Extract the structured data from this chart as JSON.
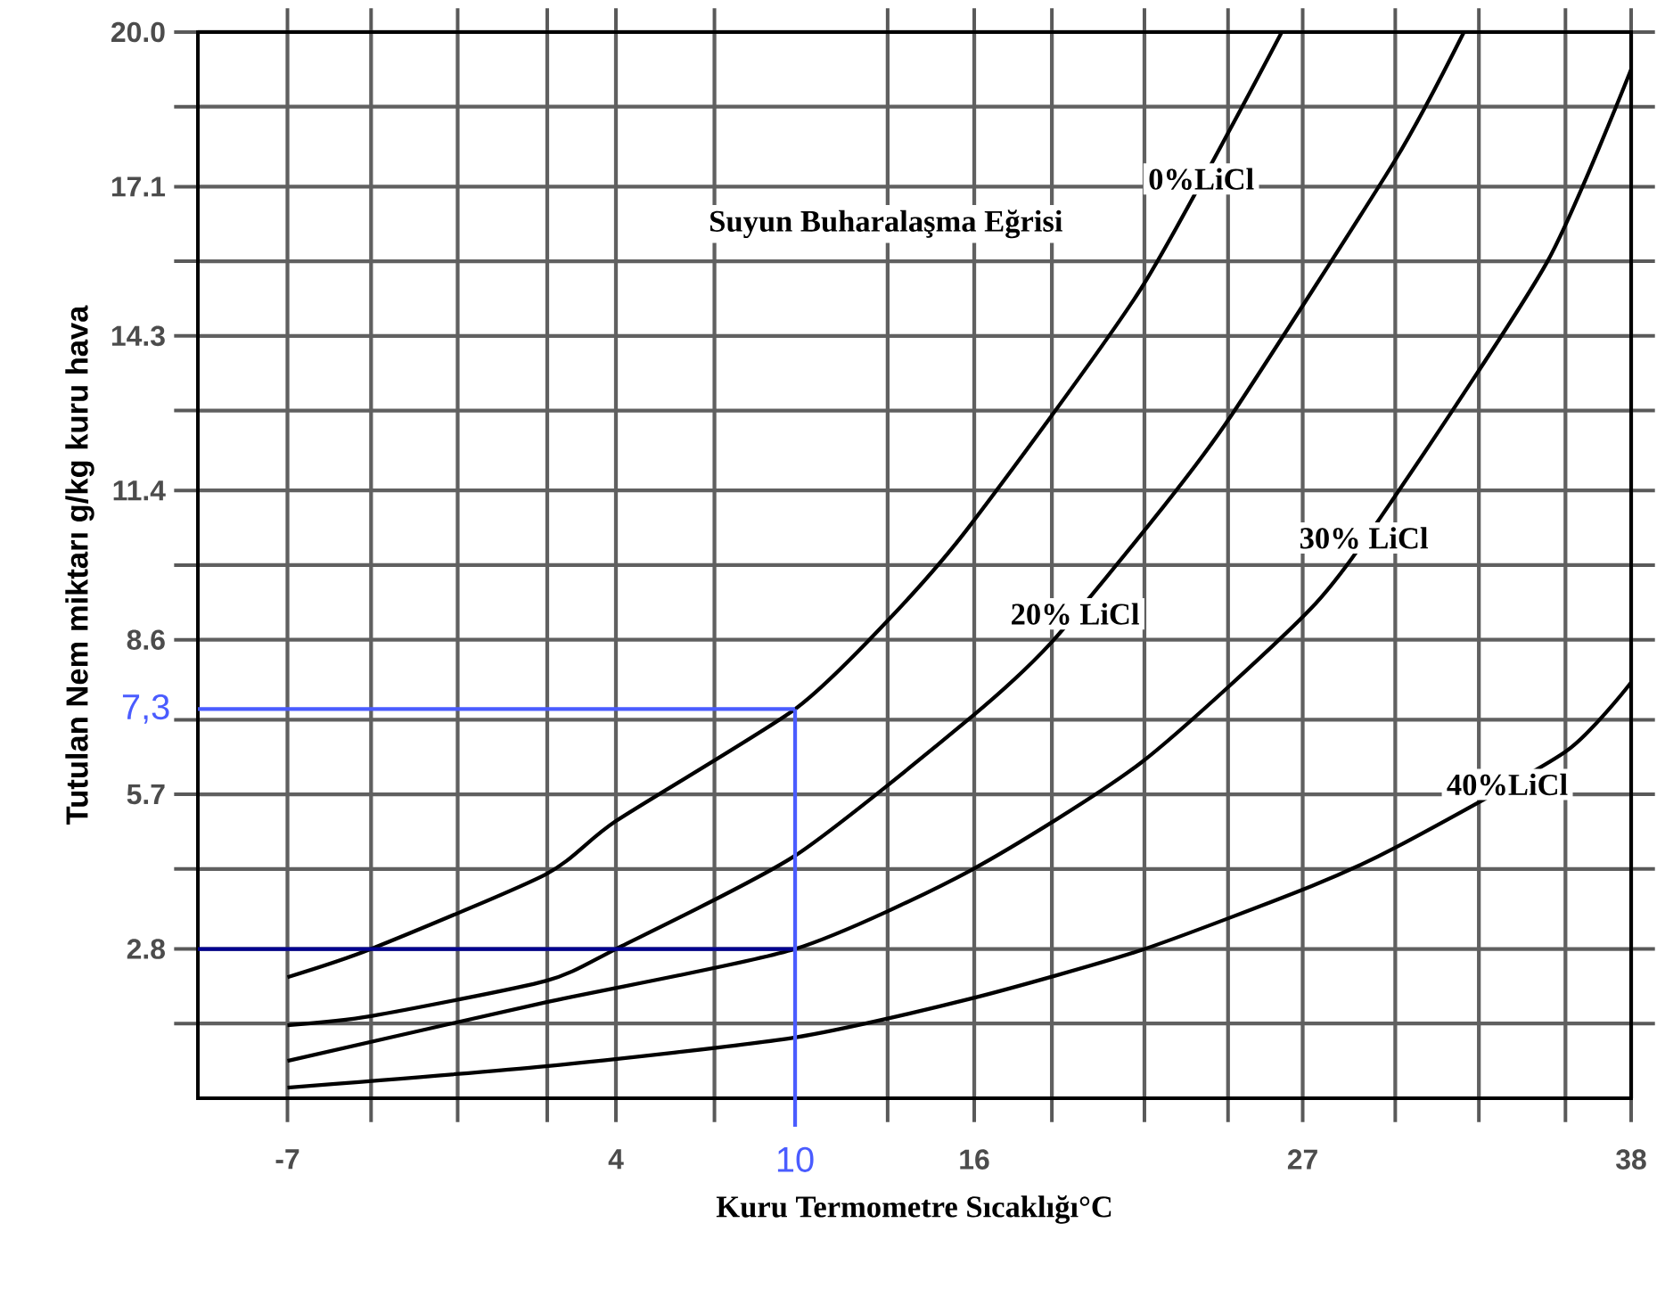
{
  "chart_data": {
    "type": "line",
    "xlabel": "Kuru Termometre Sıcaklığı°C",
    "ylabel": "Tutulan Nem miktarı   g/kg kuru hava",
    "annotations": [
      "Suyun Buharalaşma Eğrisi"
    ],
    "xlim": [
      -10,
      38
    ],
    "ylim": [
      0,
      20
    ],
    "xticks": [
      -7,
      {
        "value": -4.2,
        "label": null
      },
      {
        "value": -1.3,
        "label": null
      },
      {
        "value": 1.7,
        "label": null
      },
      4,
      {
        "value": 7.3,
        "label": null
      },
      {
        "value": 13.1,
        "label": null
      },
      16,
      {
        "value": 18.6,
        "label": null
      },
      {
        "value": 21.7,
        "label": null
      },
      {
        "value": 24.5,
        "label": null
      },
      27,
      {
        "value": 30.1,
        "label": null
      },
      {
        "value": 32.9,
        "label": null
      },
      {
        "value": 35.8,
        "label": null
      },
      38
    ],
    "yticks": [
      {
        "value": 1.4,
        "label": null
      },
      2.8,
      {
        "value": 4.3,
        "label": null
      },
      5.7,
      {
        "value": 7.1,
        "label": null
      },
      8.6,
      {
        "value": 10,
        "label": null
      },
      11.4,
      {
        "value": 12.9,
        "label": null
      },
      14.3,
      {
        "value": 15.7,
        "label": null
      },
      17.1,
      {
        "value": 18.6,
        "label": null
      },
      {
        "value": 20,
        "label": "20.0"
      }
    ],
    "grid": true,
    "series": [
      {
        "name": "0%LiCl",
        "color": "#000000",
        "x": [
          -7,
          -4.2,
          1.65,
          4,
          10,
          13,
          15.8,
          21.6,
          26.3
        ],
        "values": [
          2.27,
          2.8,
          4.2,
          5.2,
          7.3,
          8.9,
          10.7,
          15.2,
          20
        ]
      },
      {
        "name": "20% LiCl",
        "color": "#000000",
        "x": [
          -7,
          -4.2,
          1.65,
          4,
          10,
          15.9,
          18.6,
          22.2,
          24.6,
          30.1,
          32.4
        ],
        "values": [
          1.37,
          1.54,
          2.2,
          2.8,
          4.55,
          7.15,
          8.56,
          11.0,
          12.8,
          17.6,
          20
        ]
      },
      {
        "name": "30% LiCl",
        "color": "#000000",
        "x": [
          -7,
          1.65,
          10,
          15.9,
          21.6,
          27.3,
          30.1,
          35.2,
          38
        ],
        "values": [
          0.7,
          1.8,
          2.8,
          4.28,
          6.3,
          9.2,
          11.3,
          15.7,
          19.3
        ]
      },
      {
        "name": "40%LiCl",
        "color": "#000000",
        "x": [
          -7,
          1.65,
          10,
          15.9,
          21.6,
          27.3,
          30.1,
          35.8,
          38
        ],
        "values": [
          0.2,
          0.6,
          1.14,
          1.87,
          2.78,
          3.98,
          4.7,
          6.5,
          7.8
        ]
      }
    ],
    "ref_lines": [
      {
        "axis": "y",
        "value": 7.3,
        "label": "7,3",
        "color": "#4a5cff"
      },
      {
        "axis": "y",
        "value": 2.8,
        "color": "#000090"
      },
      {
        "axis": "x",
        "value": 10,
        "label": "10",
        "color": "#4a5cff"
      }
    ]
  }
}
